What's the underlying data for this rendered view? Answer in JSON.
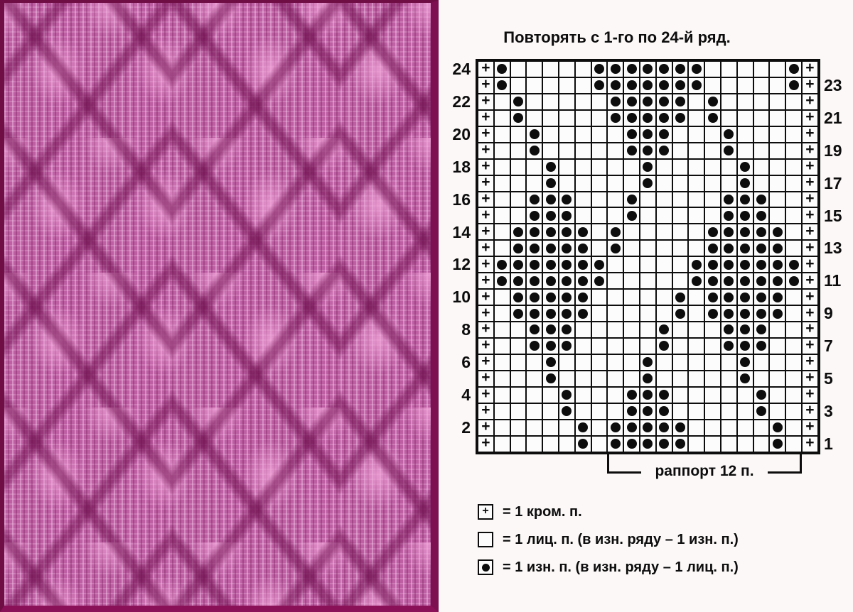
{
  "title": "Повторять с 1-го по 24-й ряд.",
  "photo": {
    "description": "Фото образца: розовое вязаное полотно с узором из ромбов",
    "colors": {
      "yarn_light": "#f0a4d8",
      "yarn_mid": "#be5fa4",
      "yarn_dark": "#701050",
      "photo_border": "#6f0d45"
    }
  },
  "chart": {
    "columns": 21,
    "rows": 24,
    "edge_symbol": "+",
    "rapport_stitches": 12,
    "left_row_numbers": [
      24,
      22,
      20,
      18,
      16,
      14,
      12,
      10,
      8,
      6,
      4,
      2
    ],
    "right_row_numbers": [
      23,
      21,
      19,
      17,
      15,
      13,
      11,
      9,
      7,
      5,
      3,
      1
    ],
    "rows_top_to_bottom": [
      {
        "row": 24,
        "dots": [
          2,
          8,
          9,
          10,
          11,
          12,
          13,
          14,
          20
        ]
      },
      {
        "row": 23,
        "dots": [
          2,
          8,
          9,
          10,
          11,
          12,
          13,
          14,
          20
        ]
      },
      {
        "row": 22,
        "dots": [
          3,
          9,
          10,
          11,
          12,
          13,
          15
        ]
      },
      {
        "row": 21,
        "dots": [
          3,
          9,
          10,
          11,
          12,
          13,
          15
        ]
      },
      {
        "row": 20,
        "dots": [
          4,
          10,
          11,
          12,
          16
        ]
      },
      {
        "row": 19,
        "dots": [
          4,
          10,
          11,
          12,
          16
        ]
      },
      {
        "row": 18,
        "dots": [
          5,
          11,
          17
        ]
      },
      {
        "row": 17,
        "dots": [
          5,
          11,
          17
        ]
      },
      {
        "row": 16,
        "dots": [
          4,
          5,
          6,
          10,
          16,
          17,
          18
        ]
      },
      {
        "row": 15,
        "dots": [
          4,
          5,
          6,
          10,
          16,
          17,
          18
        ]
      },
      {
        "row": 14,
        "dots": [
          3,
          4,
          5,
          6,
          7,
          9,
          15,
          16,
          17,
          18,
          19
        ]
      },
      {
        "row": 13,
        "dots": [
          3,
          4,
          5,
          6,
          7,
          9,
          15,
          16,
          17,
          18,
          19
        ]
      },
      {
        "row": 12,
        "dots": [
          2,
          3,
          4,
          5,
          6,
          7,
          8,
          14,
          15,
          16,
          17,
          18,
          19,
          20
        ]
      },
      {
        "row": 11,
        "dots": [
          2,
          3,
          4,
          5,
          6,
          7,
          8,
          14,
          15,
          16,
          17,
          18,
          19,
          20
        ]
      },
      {
        "row": 10,
        "dots": [
          3,
          4,
          5,
          6,
          7,
          13,
          15,
          16,
          17,
          18,
          19
        ]
      },
      {
        "row": 9,
        "dots": [
          3,
          4,
          5,
          6,
          7,
          13,
          15,
          16,
          17,
          18,
          19
        ]
      },
      {
        "row": 8,
        "dots": [
          4,
          5,
          6,
          12,
          16,
          17,
          18
        ]
      },
      {
        "row": 7,
        "dots": [
          4,
          5,
          6,
          12,
          16,
          17,
          18
        ]
      },
      {
        "row": 6,
        "dots": [
          5,
          11,
          17
        ]
      },
      {
        "row": 5,
        "dots": [
          5,
          11,
          17
        ]
      },
      {
        "row": 4,
        "dots": [
          6,
          10,
          11,
          12,
          18
        ]
      },
      {
        "row": 3,
        "dots": [
          6,
          10,
          11,
          12,
          18
        ]
      },
      {
        "row": 2,
        "dots": [
          7,
          9,
          10,
          11,
          12,
          13,
          19
        ]
      },
      {
        "row": 1,
        "dots": [
          7,
          9,
          10,
          11,
          12,
          13,
          19
        ]
      }
    ]
  },
  "rapport": {
    "label": "раппорт 12 п."
  },
  "legend": {
    "items": [
      {
        "symbol": "plus-in-square",
        "text": "= 1 кром. п."
      },
      {
        "symbol": "empty-square",
        "text": "= 1 лиц. п. (в изн. ряду – 1 изн. п.)"
      },
      {
        "symbol": "dot-in-square",
        "text": "= 1 изн. п. (в изн. ряду – 1 лиц. п.)"
      }
    ]
  }
}
